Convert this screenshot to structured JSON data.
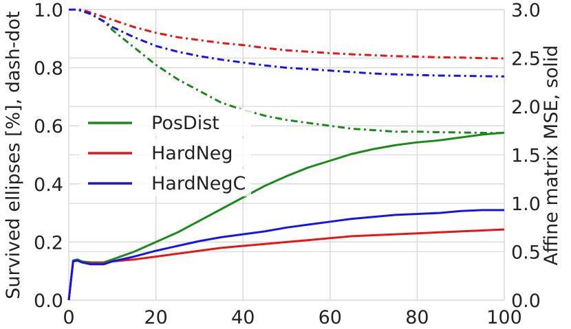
{
  "chart_data": {
    "type": "line",
    "xlim": [
      0,
      100
    ],
    "ylim_left": [
      0.0,
      1.0
    ],
    "ylim_right": [
      0.0,
      3.0
    ],
    "x_ticks": [
      "0",
      "20",
      "40",
      "60",
      "80",
      "100"
    ],
    "y_left_ticks": [
      "0.0",
      "0.2",
      "0.4",
      "0.6",
      "0.8",
      "1.0"
    ],
    "y_right_ticks": [
      "0.0",
      "0.5",
      "1.0",
      "1.5",
      "2.0",
      "2.5",
      "3.0"
    ],
    "ylabel_left": "Survived ellipses [%], dash-dot",
    "ylabel_right": "Affine matrix MSE, solid",
    "grid": true,
    "legend_placement": "center-left",
    "x": [
      0,
      1,
      2,
      3,
      5,
      8,
      10,
      15,
      20,
      25,
      30,
      35,
      40,
      45,
      50,
      55,
      60,
      65,
      70,
      75,
      80,
      85,
      90,
      95,
      100
    ],
    "series": [
      {
        "name": "PosDist",
        "color": "#1a8a1a",
        "survived_dashdot": [
          1.0,
          1.0,
          1.0,
          0.995,
          0.985,
          0.96,
          0.93,
          0.87,
          0.81,
          0.76,
          0.72,
          0.68,
          0.655,
          0.635,
          0.62,
          0.61,
          0.6,
          0.59,
          0.585,
          0.58,
          0.58,
          0.578,
          0.577,
          0.576,
          0.575
        ],
        "mse_solid": [
          0.0,
          0.41,
          0.42,
          0.4,
          0.39,
          0.39,
          0.42,
          0.5,
          0.6,
          0.7,
          0.82,
          0.94,
          1.06,
          1.18,
          1.28,
          1.37,
          1.44,
          1.51,
          1.56,
          1.6,
          1.63,
          1.65,
          1.68,
          1.71,
          1.73
        ]
      },
      {
        "name": "HardNeg",
        "color": "#e81515",
        "survived_dashdot": [
          1.0,
          1.0,
          1.0,
          1.0,
          0.99,
          0.975,
          0.965,
          0.94,
          0.92,
          0.905,
          0.895,
          0.885,
          0.878,
          0.868,
          0.86,
          0.855,
          0.85,
          0.846,
          0.843,
          0.84,
          0.838,
          0.836,
          0.835,
          0.833,
          0.832
        ],
        "mse_solid": [
          0.0,
          0.4,
          0.41,
          0.39,
          0.38,
          0.38,
          0.4,
          0.42,
          0.45,
          0.48,
          0.51,
          0.54,
          0.56,
          0.58,
          0.6,
          0.62,
          0.64,
          0.66,
          0.67,
          0.68,
          0.69,
          0.7,
          0.71,
          0.72,
          0.73
        ]
      },
      {
        "name": "HardNegC",
        "color": "#1515e8",
        "survived_dashdot": [
          1.0,
          1.0,
          1.0,
          0.995,
          0.985,
          0.96,
          0.94,
          0.905,
          0.875,
          0.855,
          0.84,
          0.828,
          0.818,
          0.808,
          0.8,
          0.795,
          0.79,
          0.785,
          0.78,
          0.777,
          0.775,
          0.773,
          0.772,
          0.771,
          0.77
        ],
        "mse_solid": [
          0.0,
          0.4,
          0.41,
          0.39,
          0.37,
          0.37,
          0.4,
          0.45,
          0.51,
          0.56,
          0.61,
          0.65,
          0.68,
          0.71,
          0.75,
          0.78,
          0.81,
          0.84,
          0.86,
          0.88,
          0.89,
          0.9,
          0.92,
          0.93,
          0.93
        ]
      }
    ]
  }
}
